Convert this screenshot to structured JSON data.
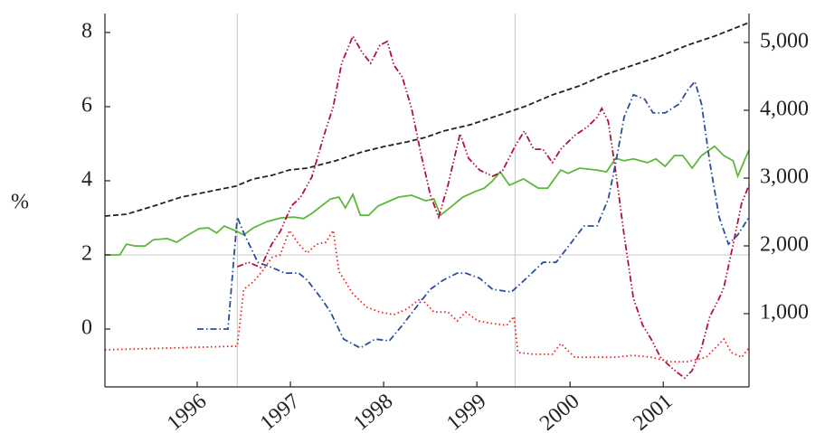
{
  "chart_data": {
    "type": "line",
    "y_label": "%",
    "xlim": [
      1995.01,
      2001.92
    ],
    "xticks": [
      1996,
      1997,
      1998,
      1999,
      2000,
      2001
    ],
    "ylim": [
      -1.56,
      8.51
    ],
    "yticks": [
      0,
      2,
      4,
      6,
      8
    ],
    "y2lim": [
      -80,
      5427
    ],
    "y2ticks": [
      {
        "value": 1000,
        "label": "1,000"
      },
      {
        "value": 2000,
        "label": "2,000"
      },
      {
        "value": 3000,
        "label": "3,000"
      },
      {
        "value": 4000,
        "label": "4,000"
      },
      {
        "value": 5000,
        "label": "5,000"
      }
    ],
    "vlines": [
      1996.43,
      1999.41
    ],
    "hlines": [
      2
    ],
    "series": [
      {
        "color": "#222222",
        "dash": "dashed",
        "axis": "y2",
        "x": [
          1995.01,
          1995.24,
          1995.53,
          1995.83,
          1996.12,
          1996.41,
          1996.6,
          1996.8,
          1996.99,
          1997.18,
          1997.48,
          1997.77,
          1998.01,
          1998.25,
          1998.45,
          1998.64,
          1998.93,
          1999.22,
          1999.51,
          1999.81,
          2000.1,
          2000.39,
          2000.68,
          2000.97,
          2001.26,
          2001.55,
          2001.92
        ],
        "values": [
          2440,
          2467,
          2587,
          2720,
          2800,
          2880,
          2987,
          3040,
          3120,
          3147,
          3253,
          3387,
          3467,
          3533,
          3600,
          3693,
          3787,
          3920,
          4053,
          4227,
          4360,
          4533,
          4667,
          4800,
          4960,
          5093,
          5293
        ]
      },
      {
        "color": "#5cb83c",
        "dash": "solid",
        "x": [
          1995.01,
          1995.17,
          1995.24,
          1995.34,
          1995.44,
          1995.53,
          1995.68,
          1995.78,
          1995.87,
          1996.02,
          1996.12,
          1996.21,
          1996.29,
          1996.43,
          1996.5,
          1996.6,
          1996.75,
          1996.9,
          1997.04,
          1997.14,
          1997.23,
          1997.43,
          1997.52,
          1997.59,
          1997.67,
          1997.75,
          1997.84,
          1997.94,
          1998.16,
          1998.3,
          1998.45,
          1998.54,
          1998.61,
          1998.71,
          1998.85,
          1998.98,
          1999.08,
          1999.17,
          1999.25,
          1999.35,
          1999.5,
          1999.66,
          1999.76,
          1999.9,
          1999.98,
          2000.1,
          2000.29,
          2000.39,
          2000.49,
          2000.58,
          2000.68,
          2000.83,
          2000.92,
          2001.02,
          2001.12,
          2001.21,
          2001.31,
          2001.41,
          2001.55,
          2001.65,
          2001.75,
          2001.8,
          2001.87,
          2001.92
        ],
        "values": [
          2.0,
          2.0,
          2.29,
          2.24,
          2.24,
          2.41,
          2.44,
          2.34,
          2.49,
          2.71,
          2.73,
          2.59,
          2.78,
          2.63,
          2.54,
          2.73,
          2.9,
          3.0,
          3.02,
          2.98,
          3.12,
          3.51,
          3.56,
          3.27,
          3.63,
          3.07,
          3.07,
          3.32,
          3.56,
          3.61,
          3.46,
          3.51,
          3.07,
          3.27,
          3.56,
          3.71,
          3.8,
          4.0,
          4.24,
          3.88,
          4.05,
          3.8,
          3.8,
          4.29,
          4.2,
          4.34,
          4.29,
          4.24,
          4.61,
          4.54,
          4.59,
          4.49,
          4.59,
          4.39,
          4.68,
          4.68,
          4.34,
          4.68,
          4.93,
          4.68,
          4.54,
          4.12,
          4.54,
          4.83
        ]
      },
      {
        "color": "#b2113b",
        "dash": "dashdotdot",
        "x": [
          1996.43,
          1996.55,
          1996.68,
          1996.8,
          1996.89,
          1997.01,
          1997.11,
          1997.23,
          1997.36,
          1997.46,
          1997.55,
          1997.67,
          1997.77,
          1997.86,
          1997.96,
          1998.04,
          1998.11,
          1998.2,
          1998.3,
          1998.4,
          1998.5,
          1998.59,
          1998.69,
          1998.82,
          1998.91,
          1999.03,
          1999.17,
          1999.27,
          1999.42,
          1999.51,
          1999.61,
          1999.71,
          1999.81,
          1999.9,
          2000.05,
          2000.19,
          2000.29,
          2000.34,
          2000.41,
          2000.49,
          2000.58,
          2000.68,
          2000.78,
          2000.87,
          2000.97,
          2001.07,
          2001.15,
          2001.23,
          2001.31,
          2001.41,
          2001.5,
          2001.6,
          2001.65,
          2001.75,
          2001.84,
          2001.92
        ],
        "values": [
          1.68,
          1.8,
          1.66,
          2.29,
          2.63,
          3.32,
          3.56,
          4.1,
          5.22,
          6.0,
          7.17,
          7.9,
          7.46,
          7.17,
          7.66,
          7.76,
          7.12,
          6.8,
          5.95,
          4.73,
          3.63,
          3.02,
          3.88,
          5.27,
          4.61,
          4.29,
          4.12,
          4.24,
          4.98,
          5.34,
          4.85,
          4.85,
          4.49,
          4.85,
          5.22,
          5.46,
          5.71,
          5.95,
          5.6,
          4.24,
          2.54,
          0.83,
          0.1,
          -0.27,
          -0.76,
          -1.0,
          -1.17,
          -1.32,
          -1.12,
          -0.51,
          0.34,
          0.83,
          1.12,
          2.29,
          3.39,
          3.88
        ]
      },
      {
        "color": "#e8231f",
        "dash": "dotted",
        "x": [
          1995.01,
          1996.43,
          1996.5,
          1996.6,
          1996.7,
          1996.8,
          1996.89,
          1996.99,
          1997.09,
          1997.18,
          1997.28,
          1997.38,
          1997.46,
          1997.52,
          1997.67,
          1997.82,
          1997.96,
          1998.11,
          1998.25,
          1998.4,
          1998.54,
          1998.69,
          1998.79,
          1998.88,
          1999.01,
          1999.17,
          1999.32,
          1999.4,
          1999.44,
          1999.61,
          1999.81,
          1999.9,
          2000.05,
          2000.29,
          2000.49,
          2000.68,
          2000.87,
          2001.07,
          2001.26,
          2001.46,
          2001.65,
          2001.73,
          2001.84,
          2001.92
        ],
        "values": [
          -0.56,
          -0.46,
          1.07,
          1.27,
          1.56,
          1.93,
          2.0,
          2.66,
          2.29,
          2.05,
          2.29,
          2.34,
          2.66,
          1.56,
          0.95,
          0.59,
          0.46,
          0.39,
          0.54,
          0.83,
          0.46,
          0.46,
          0.22,
          0.46,
          0.22,
          0.15,
          0.1,
          0.34,
          -0.63,
          -0.68,
          -0.68,
          -0.39,
          -0.76,
          -0.76,
          -0.76,
          -0.71,
          -0.76,
          -0.88,
          -0.88,
          -0.76,
          -0.27,
          -0.63,
          -0.76,
          -0.51
        ]
      },
      {
        "color": "#2a4d9c",
        "dash": "dashdot",
        "x": [
          1996.0,
          1996.33,
          1996.43,
          1996.5,
          1996.65,
          1996.8,
          1996.94,
          1997.09,
          1997.18,
          1997.33,
          1997.43,
          1997.57,
          1997.75,
          1997.91,
          1998.06,
          1998.2,
          1998.35,
          1998.5,
          1998.64,
          1998.79,
          1998.88,
          1999.03,
          1999.17,
          1999.37,
          1999.51,
          1999.71,
          1999.85,
          2000.0,
          2000.15,
          2000.29,
          2000.41,
          2000.49,
          2000.58,
          2000.68,
          2000.8,
          2000.89,
          2001.02,
          2001.17,
          2001.26,
          2001.34,
          2001.41,
          2001.5,
          2001.6,
          2001.7,
          2001.8,
          2001.92
        ],
        "values": [
          0,
          0,
          3.02,
          2.59,
          1.8,
          1.66,
          1.51,
          1.51,
          1.32,
          0.83,
          0.46,
          -0.27,
          -0.51,
          -0.27,
          -0.32,
          0.1,
          0.59,
          1.07,
          1.32,
          1.51,
          1.51,
          1.37,
          1.07,
          1.0,
          1.32,
          1.8,
          1.8,
          2.29,
          2.78,
          2.78,
          3.51,
          4.49,
          5.71,
          6.32,
          6.2,
          5.83,
          5.83,
          6.07,
          6.44,
          6.68,
          6.07,
          4.49,
          3.02,
          2.29,
          2.54,
          3.02
        ]
      }
    ]
  }
}
